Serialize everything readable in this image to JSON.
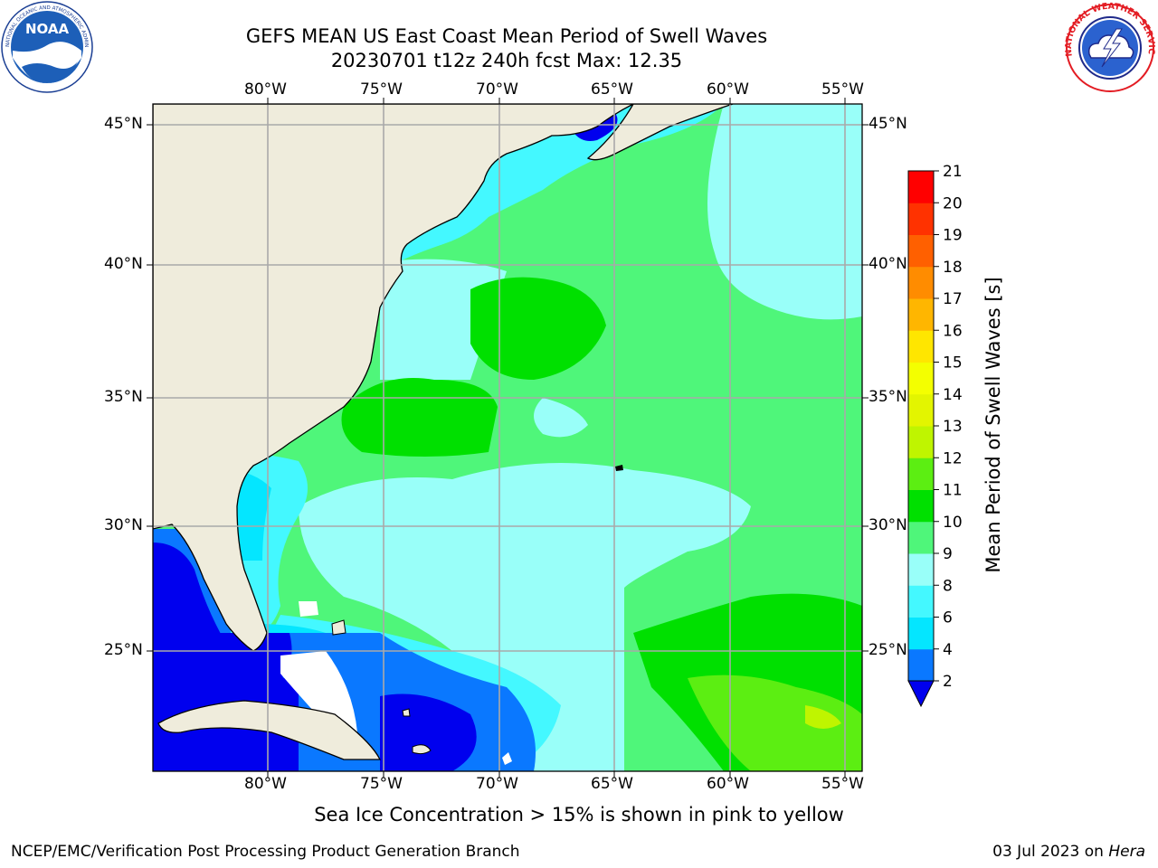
{
  "title": {
    "line1": "GEFS MEAN US East Coast Mean Period of Swell Waves",
    "line2": "20230701 t12z 240h fcst   Max: 12.35"
  },
  "logos": {
    "left": {
      "icon": "noaa-logo",
      "text": "NOAA",
      "ring_text": "NATIONAL OCEANIC AND ATMOSPHERIC ADMINISTRATION · U.S. DEPARTMENT OF COMMERCE"
    },
    "right": {
      "icon": "nws-logo",
      "ring_text": "NATIONAL WEATHER SERVICE"
    }
  },
  "map": {
    "lon_labels": [
      "80°W",
      "75°W",
      "70°W",
      "65°W",
      "60°W",
      "55°W"
    ],
    "lat_labels": [
      "45°N",
      "40°N",
      "35°N",
      "30°N",
      "25°N"
    ],
    "lon_range": [
      -85,
      -54.6
    ],
    "lat_range": [
      20.5,
      45.8
    ],
    "land_color": "#efecdc",
    "grid_color": "#a9a9a9"
  },
  "colorbar": {
    "label": "Mean Period of Swell Waves [s]",
    "ticks": [
      "2",
      "4",
      "6",
      "8",
      "9",
      "10",
      "11",
      "12",
      "13",
      "14",
      "15",
      "16",
      "17",
      "18",
      "19",
      "20",
      "21"
    ],
    "bins": [
      {
        "from": 2,
        "to": 4,
        "color": "#0a78ff"
      },
      {
        "from": 4,
        "to": 6,
        "color": "#04e6ff"
      },
      {
        "from": 6,
        "to": 8,
        "color": "#44f8ff"
      },
      {
        "from": 8,
        "to": 9,
        "color": "#99fff9"
      },
      {
        "from": 9,
        "to": 10,
        "color": "#4ff67a"
      },
      {
        "from": 10,
        "to": 11,
        "color": "#00e000"
      },
      {
        "from": 11,
        "to": 12,
        "color": "#5cee12"
      },
      {
        "from": 12,
        "to": 13,
        "color": "#bff500"
      },
      {
        "from": 13,
        "to": 14,
        "color": "#e3f500"
      },
      {
        "from": 14,
        "to": 15,
        "color": "#f4ff00"
      },
      {
        "from": 15,
        "to": 16,
        "color": "#ffe600"
      },
      {
        "from": 16,
        "to": 17,
        "color": "#ffb600"
      },
      {
        "from": 17,
        "to": 18,
        "color": "#ff8c00"
      },
      {
        "from": 18,
        "to": 19,
        "color": "#ff6000"
      },
      {
        "from": 19,
        "to": 20,
        "color": "#ff3200"
      },
      {
        "from": 20,
        "to": 21,
        "color": "#ff0000"
      }
    ],
    "under_color": "#0000ee"
  },
  "note": "Sea Ice Concentration > 15% is shown in pink to yellow",
  "footer": {
    "left": "NCEP/EMC/Verification Post Processing Product Generation Branch",
    "right_date": "03 Jul 2023 on ",
    "right_machine": "Hera"
  }
}
